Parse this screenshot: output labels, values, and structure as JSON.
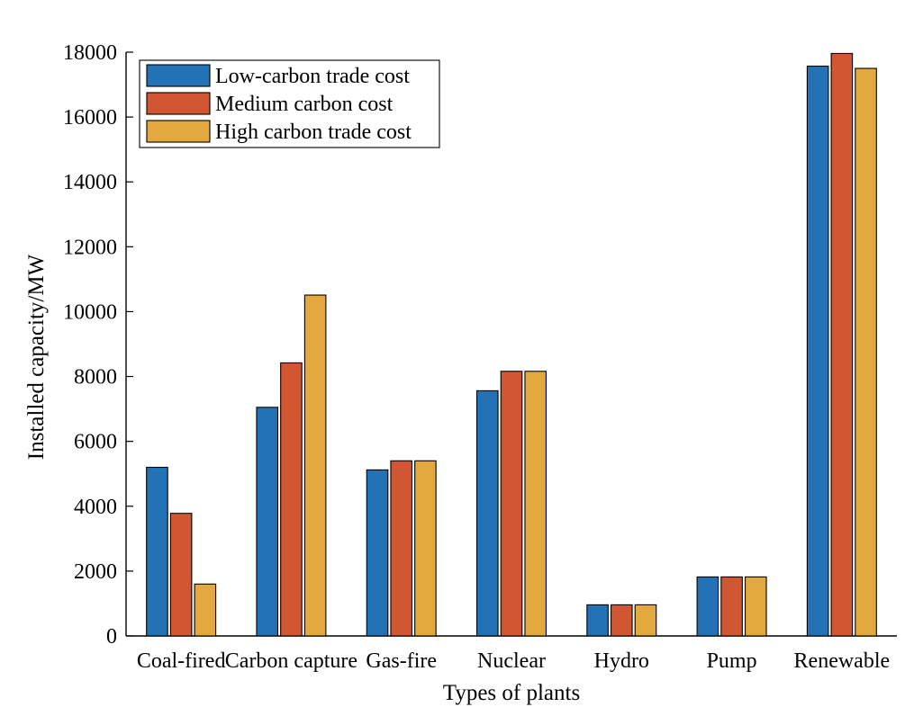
{
  "chart_data": {
    "type": "bar",
    "title": "",
    "xlabel": "Types of plants",
    "ylabel": "Installed capacity/MW",
    "ylim": [
      0,
      18000
    ],
    "yticks": [
      0,
      2000,
      4000,
      6000,
      8000,
      10000,
      12000,
      14000,
      16000,
      18000
    ],
    "categories": [
      "Coal-fired",
      "Carbon capture",
      "Gas-fire",
      "Nuclear",
      "Hydro",
      "Pump",
      "Renewable"
    ],
    "series": [
      {
        "name": "Low-carbon trade cost",
        "color": "#2372B5",
        "values": [
          5200,
          7050,
          5120,
          7560,
          960,
          1820,
          17570
        ]
      },
      {
        "name": "Medium carbon cost",
        "color": "#D15733",
        "values": [
          3780,
          8420,
          5400,
          8160,
          960,
          1820,
          17960
        ]
      },
      {
        "name": "High carbon trade cost",
        "color": "#E3A83E",
        "values": [
          1600,
          10510,
          5400,
          8160,
          960,
          1820,
          17500
        ]
      }
    ],
    "legend_position": "top-left",
    "grid": false
  }
}
